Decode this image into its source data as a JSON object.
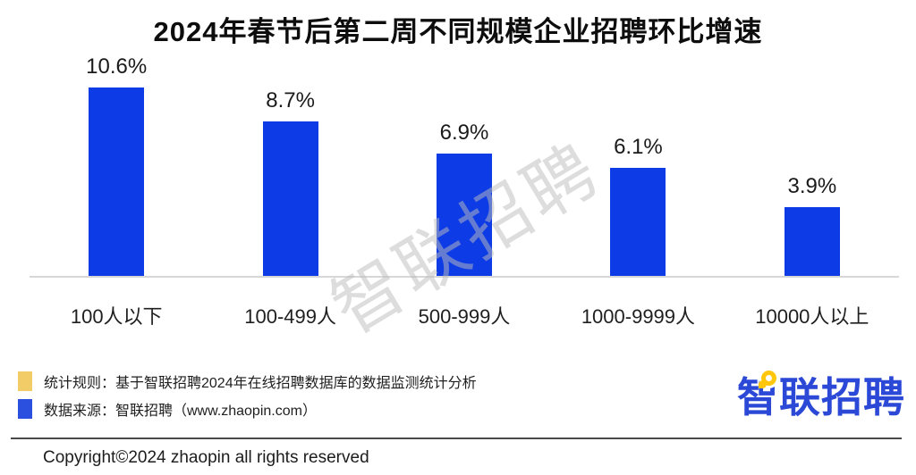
{
  "title": "2024年春节后第二周不同规模企业招聘环比增速",
  "chart_data": {
    "type": "bar",
    "categories": [
      "100人以下",
      "100-499人",
      "500-999人",
      "1000-9999人",
      "10000人以上"
    ],
    "values": [
      10.6,
      8.7,
      6.9,
      6.1,
      3.9
    ],
    "value_labels": [
      "10.6%",
      "8.7%",
      "6.9%",
      "6.1%",
      "3.9%"
    ],
    "title": "2024年春节后第二周不同规模企业招聘环比增速",
    "xlabel": "",
    "ylabel": "",
    "ylim": [
      0,
      12
    ],
    "grid": false,
    "legend_position": "none",
    "bar_color": "#0D3BE5"
  },
  "watermark": {
    "text": "智联招聘"
  },
  "legend": [
    {
      "color": "#F2CC66",
      "label": "统计规则：基于智联招聘2024年在线招聘数据库的数据监测统计分析"
    },
    {
      "color": "#2B50E0",
      "label": "数据来源：智联招聘（www.zhaopin.com）"
    }
  ],
  "logo": {
    "text": "智联招聘"
  },
  "footer": {
    "copyright": "Copyright©2024 zhaopin all rights reserved"
  },
  "colors": {
    "bar": "#0D3BE5",
    "axis_line": "#D7D7D7",
    "divider": "#4A4A4A",
    "legend_yellow": "#F2CC66",
    "legend_blue": "#2B50E0",
    "logo_blue": "#2B49D6",
    "logo_yellow": "#FFC60B",
    "watermark": "#BCBCBC",
    "title_text": "#0D0D0D"
  }
}
